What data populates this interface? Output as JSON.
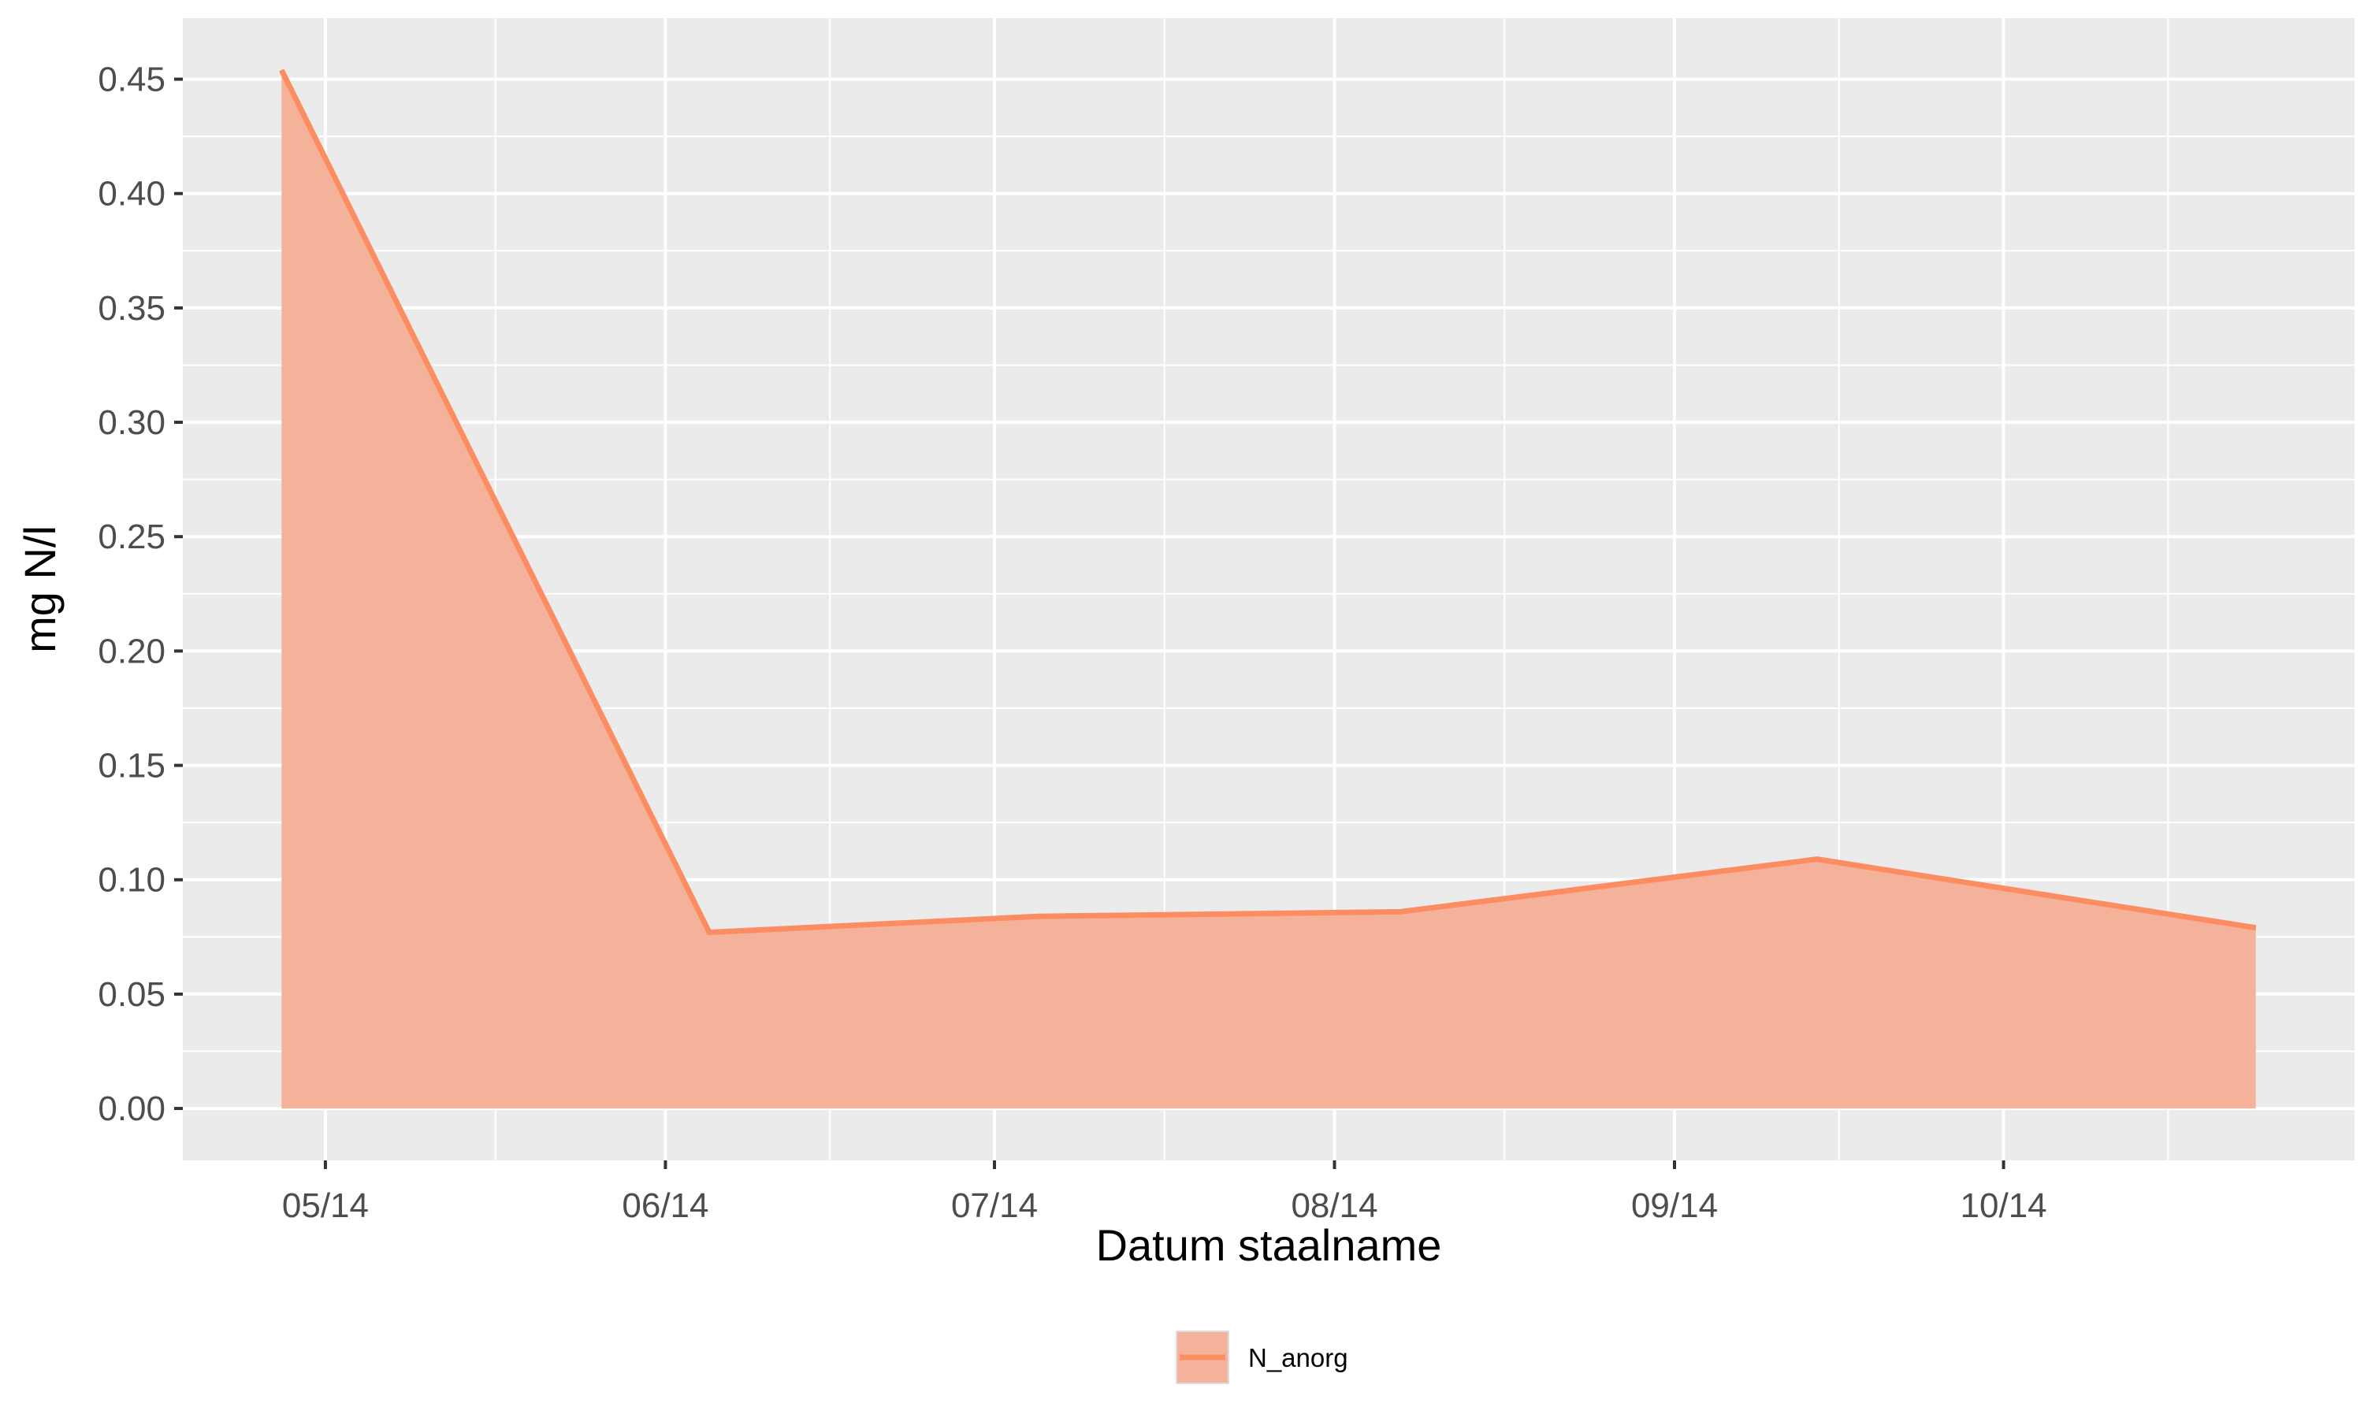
{
  "chart_data": {
    "type": "area",
    "x": [
      "2014-04-27",
      "2014-06-05",
      "2014-07-05",
      "2014-08-07",
      "2014-09-14",
      "2014-10-24"
    ],
    "values": [
      0.454,
      0.077,
      0.084,
      0.086,
      0.109,
      0.079
    ],
    "series_name": "N_anorg",
    "xlabel": "Datum staalname",
    "ylabel": "mg N/l",
    "x_tick_labels": [
      "05/14",
      "06/14",
      "07/14",
      "08/14",
      "09/14",
      "10/14"
    ],
    "x_tick_dates": [
      "2014-05-01",
      "2014-06-01",
      "2014-07-01",
      "2014-08-01",
      "2014-09-01",
      "2014-10-01"
    ],
    "y_ticks": [
      0,
      0.05,
      0.1,
      0.15,
      0.2,
      0.25,
      0.3,
      0.35,
      0.4,
      0.45
    ],
    "y_tick_labels": [
      "0.00",
      "0.05",
      "0.10",
      "0.15",
      "0.20",
      "0.25",
      "0.30",
      "0.35",
      "0.40",
      "0.45"
    ],
    "xlim": [
      "2014-04-18",
      "2014-11-02"
    ],
    "ylim": [
      -0.0227,
      0.4767
    ],
    "grid": true,
    "legend_position": "bottom",
    "colors": {
      "fill": "#f5b29a",
      "line": "#fc8d62",
      "panel": "#ebebeb",
      "grid": "#ffffff"
    }
  }
}
